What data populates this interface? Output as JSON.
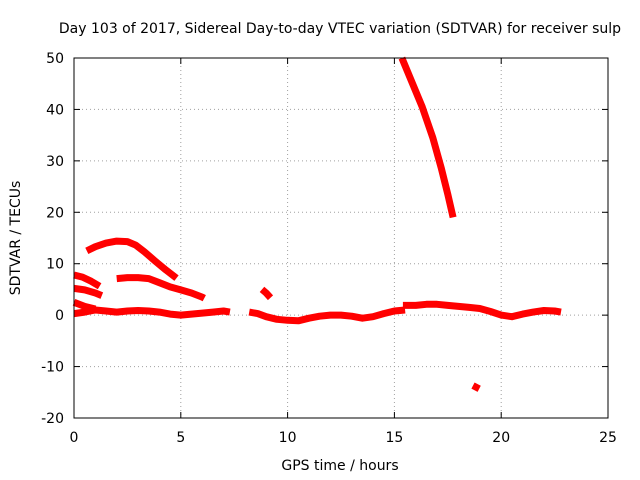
{
  "chart_data": {
    "type": "scatter",
    "title": "Day 103 of 2017, Sidereal Day-to-day VTEC variation (SDTVAR) for receiver sulp",
    "xlabel": "GPS time / hours",
    "ylabel": "SDTVAR / TECUs",
    "xlim": [
      0,
      25
    ],
    "ylim": [
      -20,
      50
    ],
    "xticks": [
      0,
      5,
      10,
      15,
      20,
      25
    ],
    "yticks": [
      -20,
      -10,
      0,
      10,
      20,
      30,
      40,
      50
    ],
    "grid": true,
    "legend": "none",
    "series_color": "#ff0000",
    "series": [
      {
        "name": "arc-1",
        "points": [
          [
            0.6,
            12.5
          ],
          [
            1.0,
            13.3
          ],
          [
            1.5,
            14.0
          ],
          [
            2.0,
            14.4
          ],
          [
            2.5,
            14.3
          ],
          [
            2.9,
            13.6
          ],
          [
            3.3,
            12.3
          ],
          [
            3.8,
            10.5
          ],
          [
            4.3,
            8.8
          ],
          [
            4.8,
            7.2
          ]
        ]
      },
      {
        "name": "arc-2",
        "points": [
          [
            0.0,
            7.8
          ],
          [
            0.4,
            7.4
          ],
          [
            0.8,
            6.6
          ],
          [
            1.2,
            5.6
          ]
        ]
      },
      {
        "name": "arc-3",
        "points": [
          [
            0.0,
            5.2
          ],
          [
            0.5,
            4.9
          ],
          [
            1.0,
            4.3
          ],
          [
            1.3,
            3.8
          ]
        ]
      },
      {
        "name": "arc-4",
        "points": [
          [
            0.0,
            2.5
          ],
          [
            0.5,
            1.7
          ],
          [
            1.0,
            1.2
          ]
        ]
      },
      {
        "name": "arc-5",
        "points": [
          [
            2.0,
            7.1
          ],
          [
            2.5,
            7.3
          ],
          [
            3.0,
            7.3
          ],
          [
            3.5,
            7.1
          ],
          [
            4.0,
            6.3
          ],
          [
            4.5,
            5.5
          ],
          [
            5.0,
            4.9
          ],
          [
            5.5,
            4.3
          ],
          [
            6.0,
            3.5
          ],
          [
            6.1,
            3.3
          ]
        ]
      },
      {
        "name": "arc-6",
        "points": [
          [
            0.0,
            0.3
          ],
          [
            0.5,
            0.6
          ],
          [
            1.0,
            1.0
          ],
          [
            1.5,
            0.8
          ],
          [
            2.0,
            0.6
          ],
          [
            2.5,
            0.8
          ],
          [
            3.0,
            0.9
          ],
          [
            3.5,
            0.8
          ],
          [
            4.0,
            0.6
          ],
          [
            4.5,
            0.2
          ],
          [
            5.0,
            0.0
          ],
          [
            5.5,
            0.2
          ],
          [
            6.0,
            0.4
          ],
          [
            6.5,
            0.6
          ],
          [
            7.0,
            0.8
          ],
          [
            7.3,
            0.6
          ]
        ]
      },
      {
        "name": "arc-7",
        "points": [
          [
            8.2,
            0.6
          ],
          [
            8.6,
            0.3
          ],
          [
            9.0,
            -0.3
          ],
          [
            9.5,
            -0.8
          ],
          [
            10.0,
            -1.0
          ],
          [
            10.5,
            -1.1
          ],
          [
            11.0,
            -0.6
          ],
          [
            11.5,
            -0.2
          ],
          [
            12.0,
            0.0
          ],
          [
            12.5,
            0.0
          ],
          [
            13.0,
            -0.2
          ],
          [
            13.5,
            -0.6
          ],
          [
            14.0,
            -0.3
          ],
          [
            14.5,
            0.3
          ],
          [
            15.0,
            0.8
          ],
          [
            15.5,
            1.0
          ]
        ]
      },
      {
        "name": "arc-8",
        "points": [
          [
            8.8,
            5.0
          ],
          [
            9.0,
            4.3
          ],
          [
            9.2,
            3.4
          ]
        ]
      },
      {
        "name": "arc-9",
        "points": [
          [
            15.4,
            1.9
          ],
          [
            16.0,
            1.9
          ],
          [
            16.5,
            2.1
          ],
          [
            17.0,
            2.1
          ],
          [
            17.5,
            1.9
          ],
          [
            18.0,
            1.7
          ],
          [
            18.5,
            1.5
          ],
          [
            19.0,
            1.3
          ],
          [
            19.5,
            0.7
          ],
          [
            20.0,
            0.0
          ],
          [
            20.5,
            -0.3
          ],
          [
            21.0,
            0.2
          ],
          [
            21.5,
            0.6
          ],
          [
            22.0,
            0.9
          ],
          [
            22.5,
            0.8
          ],
          [
            22.8,
            0.6
          ]
        ]
      },
      {
        "name": "arc-10",
        "points": [
          [
            15.35,
            50.0
          ],
          [
            15.8,
            45.5
          ],
          [
            16.3,
            40.5
          ],
          [
            16.8,
            34.5
          ],
          [
            17.2,
            28.5
          ],
          [
            17.5,
            23.5
          ],
          [
            17.75,
            19.0
          ]
        ]
      },
      {
        "name": "arc-11",
        "points": [
          [
            18.75,
            -14.6
          ],
          [
            18.9,
            -13.4
          ]
        ]
      }
    ]
  }
}
